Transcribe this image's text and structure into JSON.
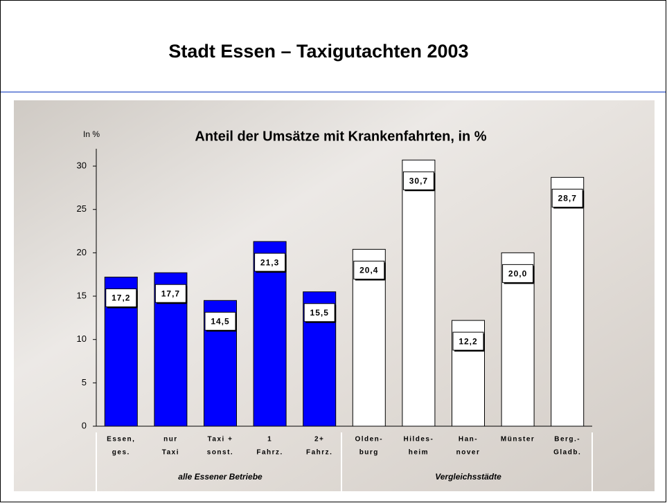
{
  "header": {
    "title": "Stadt Essen – Taxigutachten 2003"
  },
  "chart_data": {
    "type": "bar",
    "title": "Anteil der Umsätze mit Krankenfahrten, in %",
    "y_label": "In %",
    "categories": [
      [
        "Essen,",
        "ges."
      ],
      [
        "nur",
        "Taxi"
      ],
      [
        "Taxi +",
        "sonst."
      ],
      [
        "1",
        "Fahrz."
      ],
      [
        "2+",
        "Fahrz."
      ],
      [
        "Olden-",
        "burg"
      ],
      [
        "Hildes-",
        "heim"
      ],
      [
        "Han-",
        "nover"
      ],
      [
        "Münster"
      ],
      [
        "Berg.-",
        "Gladb."
      ]
    ],
    "series": [
      {
        "name": "alle Essener Betriebe",
        "color": "#0000ff",
        "values": [
          17.2,
          17.7,
          14.5,
          21.3,
          15.5,
          null,
          null,
          null,
          null,
          null
        ],
        "value_labels": [
          "17,2",
          "17,7",
          "14,5",
          "21,3",
          "15,5",
          null,
          null,
          null,
          null,
          null
        ]
      },
      {
        "name": "Vergleichsstädte",
        "color": "#ffffff",
        "values": [
          null,
          null,
          null,
          null,
          null,
          20.4,
          30.7,
          12.2,
          20.0,
          28.7
        ],
        "value_labels": [
          null,
          null,
          null,
          null,
          null,
          "20,4",
          "30,7",
          "12,2",
          "20,0",
          "28,7"
        ]
      }
    ],
    "ylim": [
      0,
      32
    ],
    "yticks": [
      0,
      5,
      10,
      15,
      20,
      25,
      30
    ],
    "grid": false
  }
}
